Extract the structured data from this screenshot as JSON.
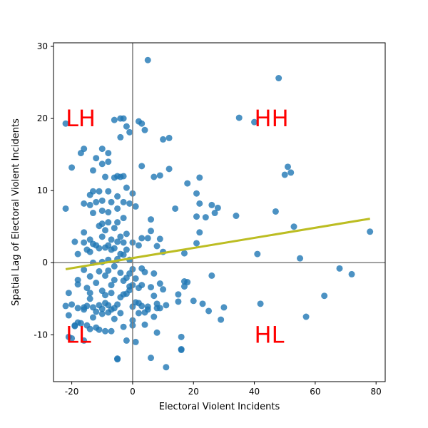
{
  "chart_data": {
    "type": "scatter",
    "xlabel": "Electoral Violent Incidents",
    "ylabel": "Spatial Lag of Electoral Violent Incidents",
    "xlim": [
      -26,
      83
    ],
    "ylim": [
      -16.5,
      30.5
    ],
    "xticks": [
      -20,
      0,
      20,
      40,
      60,
      80
    ],
    "yticks": [
      -10,
      0,
      10,
      20,
      30
    ],
    "grid": false,
    "legend": "none",
    "colors": {
      "points": "#1f77b4",
      "fit_line": "#bcbd22",
      "reference_lines": "#808080",
      "quadrant_labels": "#ff0000"
    },
    "reference_lines": {
      "x": 0,
      "y": 0
    },
    "fit_line": {
      "x": [
        -22,
        78
      ],
      "y": [
        -0.9,
        6.1
      ]
    },
    "quadrant_labels": [
      {
        "text": "LH",
        "x": -22,
        "y": 20
      },
      {
        "text": "HH",
        "x": 40,
        "y": 20
      },
      {
        "text": "LL",
        "x": -22,
        "y": -10
      },
      {
        "text": "HL",
        "x": 40,
        "y": -10
      }
    ],
    "points": [
      [
        -22,
        19.3
      ],
      [
        -22,
        7.5
      ],
      [
        -20,
        13.2
      ],
      [
        -19,
        2.9
      ],
      [
        -18,
        1.2
      ],
      [
        -18,
        -2.4
      ],
      [
        -18,
        -3
      ],
      [
        -17,
        15.2
      ],
      [
        -16,
        15.8
      ],
      [
        -16,
        8.2
      ],
      [
        -16,
        4.2
      ],
      [
        -16,
        2.8
      ],
      [
        -16,
        -1
      ],
      [
        -15,
        1.8
      ],
      [
        -15,
        -3.5
      ],
      [
        -14,
        9.4
      ],
      [
        -14,
        8
      ],
      [
        -14,
        3.2
      ],
      [
        -14,
        1.5
      ],
      [
        -14,
        -1.9
      ],
      [
        -14,
        -4.2
      ],
      [
        -13,
        12.8
      ],
      [
        -13,
        9.9
      ],
      [
        -13,
        6.9
      ],
      [
        -13,
        2.6
      ],
      [
        -13,
        0
      ],
      [
        -12,
        14.5
      ],
      [
        -12,
        8.4
      ],
      [
        -12,
        2.4
      ],
      [
        -12,
        -2.8
      ],
      [
        -11,
        9.9
      ],
      [
        -11,
        5.1
      ],
      [
        -11,
        2
      ],
      [
        -11,
        -1.2
      ],
      [
        -10,
        15.8
      ],
      [
        -10,
        13.7
      ],
      [
        -10,
        8.6
      ],
      [
        -10,
        7.2
      ],
      [
        -10,
        5.4
      ],
      [
        -10,
        3.6
      ],
      [
        -10,
        0.1
      ],
      [
        -10,
        -3.9
      ],
      [
        -9,
        11.9
      ],
      [
        -9,
        4.5
      ],
      [
        -9,
        2.1
      ],
      [
        -9,
        -1.8
      ],
      [
        -9,
        -4.5
      ],
      [
        -8,
        15.2
      ],
      [
        -8,
        14
      ],
      [
        -8,
        9.9
      ],
      [
        -8,
        7
      ],
      [
        -8,
        5.6
      ],
      [
        -8,
        2.4
      ],
      [
        -8,
        0.4
      ],
      [
        -8,
        -1.1
      ],
      [
        -7,
        8.4
      ],
      [
        -7,
        3.2
      ],
      [
        -7,
        1.8
      ],
      [
        -7,
        -3.1
      ],
      [
        -7,
        -4.2
      ],
      [
        -6,
        19.8
      ],
      [
        -6,
        11.8
      ],
      [
        -6,
        4.8
      ],
      [
        -6,
        2
      ],
      [
        -6,
        -0.5
      ],
      [
        -6,
        -2.4
      ],
      [
        -5,
        12
      ],
      [
        -5,
        9.2
      ],
      [
        -5,
        7.5
      ],
      [
        -5,
        5.6
      ],
      [
        -5,
        2.9
      ],
      [
        -5,
        0.5
      ],
      [
        -4,
        20
      ],
      [
        -4,
        17.4
      ],
      [
        -4,
        11.9
      ],
      [
        -4,
        3.6
      ],
      [
        -4,
        1.2
      ],
      [
        -4,
        -1.4
      ],
      [
        -3,
        20
      ],
      [
        -3,
        12
      ],
      [
        -3,
        8.4
      ],
      [
        -3,
        6.2
      ],
      [
        -3,
        2.8
      ],
      [
        -3,
        1.1
      ],
      [
        -3,
        -2.5
      ],
      [
        -2,
        18.9
      ],
      [
        -2,
        10.4
      ],
      [
        -2,
        4
      ],
      [
        -2,
        1.8
      ],
      [
        -2,
        -2.1
      ],
      [
        -1,
        18.1
      ],
      [
        -1,
        8.2
      ],
      [
        -1,
        0.4
      ],
      [
        -1,
        -1.5
      ],
      [
        -1,
        -3.3
      ],
      [
        0,
        9.6
      ],
      [
        0,
        2.8
      ],
      [
        0,
        -0.9
      ],
      [
        0,
        -3.1
      ],
      [
        0,
        -6.1
      ],
      [
        0,
        -8.7
      ],
      [
        1,
        7.8
      ],
      [
        1,
        -2.2
      ],
      [
        1,
        -5.5
      ],
      [
        2,
        19.6
      ],
      [
        2,
        2.4
      ],
      [
        2,
        -3.5
      ],
      [
        2,
        -7
      ],
      [
        3,
        19.3
      ],
      [
        3,
        13.4
      ],
      [
        3,
        3.4
      ],
      [
        3,
        -0.8
      ],
      [
        3,
        -3.1
      ],
      [
        3,
        -6
      ],
      [
        4,
        18.4
      ],
      [
        4,
        -1.3
      ],
      [
        4,
        -6.9
      ],
      [
        5,
        28.1
      ],
      [
        5,
        3.4
      ],
      [
        5,
        -6.5
      ],
      [
        6,
        6
      ],
      [
        6,
        4.4
      ],
      [
        6,
        -3.4
      ],
      [
        7,
        11.9
      ],
      [
        7,
        -1.5
      ],
      [
        7,
        -4.6
      ],
      [
        8,
        2.3
      ],
      [
        8,
        -6.3
      ],
      [
        9,
        12.1
      ],
      [
        9,
        3.3
      ],
      [
        9,
        -2.9
      ],
      [
        9,
        -6.3
      ],
      [
        10,
        17.1
      ],
      [
        10,
        1.5
      ],
      [
        10,
        -3.7
      ],
      [
        11,
        -5.9
      ],
      [
        11,
        -14.5
      ],
      [
        12,
        17.3
      ],
      [
        12,
        13
      ],
      [
        14,
        7.5
      ],
      [
        15,
        -4.4
      ],
      [
        15,
        -5.4
      ],
      [
        16,
        -10.3
      ],
      [
        16,
        -12
      ],
      [
        17,
        1.3
      ],
      [
        17,
        -2.6
      ],
      [
        17,
        -3.3
      ],
      [
        18,
        11
      ],
      [
        18,
        -2.7
      ],
      [
        20,
        -5.3
      ],
      [
        21,
        9.6
      ],
      [
        21,
        6.4
      ],
      [
        21,
        2.7
      ],
      [
        22,
        11.8
      ],
      [
        22,
        8.2
      ],
      [
        22,
        4.2
      ],
      [
        23,
        -5.7
      ],
      [
        24,
        6.3
      ],
      [
        25,
        -6.7
      ],
      [
        26,
        8
      ],
      [
        26,
        -1.8
      ],
      [
        27,
        6.9
      ],
      [
        28,
        7.6
      ],
      [
        29,
        -7.9
      ],
      [
        30,
        -6.2
      ],
      [
        34,
        6.5
      ],
      [
        35,
        20.1
      ],
      [
        40,
        19.5
      ],
      [
        41,
        1.2
      ],
      [
        42,
        -5.7
      ],
      [
        47,
        7.1
      ],
      [
        48,
        25.6
      ],
      [
        50,
        12.2
      ],
      [
        51,
        13.3
      ],
      [
        52,
        12.5
      ],
      [
        53,
        5
      ],
      [
        55,
        0.6
      ],
      [
        57,
        -7.5
      ],
      [
        63,
        -4.6
      ],
      [
        68,
        -0.8
      ],
      [
        72,
        -1.6
      ],
      [
        78,
        4.3
      ],
      [
        -21,
        -10.3
      ],
      [
        -20,
        -10.5
      ],
      [
        -19,
        -8.7
      ],
      [
        -18,
        -8.3
      ],
      [
        -17,
        -8.4
      ],
      [
        -16,
        -6.5
      ],
      [
        -16,
        -10.8
      ],
      [
        -15,
        -8.7
      ],
      [
        -14,
        -9.2
      ],
      [
        -13,
        -7.6
      ],
      [
        -12,
        -9
      ],
      [
        -11,
        -9.3
      ],
      [
        -10,
        -7.1
      ],
      [
        -9,
        -9.5
      ],
      [
        -8,
        -6.9
      ],
      [
        -7,
        -9.5
      ],
      [
        -6,
        -7.8
      ],
      [
        -5,
        -13.3
      ],
      [
        -5,
        -13.4
      ],
      [
        -4,
        -7
      ],
      [
        -3,
        -8.9
      ],
      [
        -2,
        -10.8
      ],
      [
        0,
        -8
      ],
      [
        1,
        -11
      ],
      [
        6,
        -13.2
      ],
      [
        8,
        -9.7
      ],
      [
        16,
        -12.1
      ],
      [
        -22,
        -6
      ],
      [
        -21,
        -7.3
      ],
      [
        -19,
        -8.8
      ],
      [
        -18,
        -6.3
      ],
      [
        -16,
        -6.2
      ],
      [
        -15,
        -6
      ],
      [
        -14,
        -5
      ],
      [
        -13,
        -6.2
      ],
      [
        -12,
        -6.8
      ],
      [
        -11,
        -5.9
      ],
      [
        -10,
        -6.4
      ],
      [
        -9,
        -5.6
      ],
      [
        -8,
        -5.9
      ],
      [
        -7,
        -6.5
      ],
      [
        -6,
        -6.3
      ],
      [
        -5,
        -5.8
      ],
      [
        -4,
        -4.8
      ],
      [
        -3,
        -4.4
      ],
      [
        -2,
        -4.3
      ],
      [
        -1,
        -3.8
      ],
      [
        2,
        -5.6
      ],
      [
        4,
        -8.6
      ],
      [
        5,
        -6.1
      ],
      [
        7,
        -7.5
      ],
      [
        8,
        -5.7
      ],
      [
        -21,
        -4.2
      ],
      [
        -20,
        -5.8
      ]
    ]
  }
}
